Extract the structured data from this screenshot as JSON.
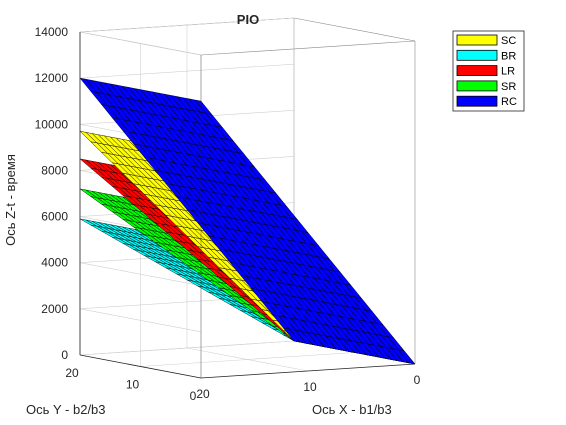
{
  "chart_data": {
    "type": "surface3d",
    "title": "PIO",
    "xlabel": "Ось X - b1/b3",
    "ylabel": "Ось Y - b2/b3",
    "zlabel": "Ось Z-t - время",
    "xlim": [
      0,
      20
    ],
    "ylim": [
      0,
      20
    ],
    "zlim": [
      0,
      14000
    ],
    "x_ticks": [
      "20",
      "10",
      "0"
    ],
    "y_ticks": [
      "20",
      "10",
      "0"
    ],
    "z_ticks": [
      "0",
      "2000",
      "4000",
      "6000",
      "8000",
      "10000",
      "12000",
      "14000"
    ],
    "grid": true,
    "legend_position": "outside-top-right",
    "series": [
      {
        "name": "SC",
        "color": "#ffff00",
        "corners": {
          "x0y0": 0,
          "x20y0": 9700,
          "x0y20": 0,
          "x20y20": 9700
        }
      },
      {
        "name": "BR",
        "color": "#00ffff",
        "corners": {
          "x0y0": 0,
          "x20y0": 5900,
          "x0y20": 0,
          "x20y20": 5900
        }
      },
      {
        "name": "LR",
        "color": "#ff0000",
        "corners": {
          "x0y0": 0,
          "x20y0": 8500,
          "x0y20": 0,
          "x20y20": 8500
        }
      },
      {
        "name": "SR",
        "color": "#00ff00",
        "corners": {
          "x0y0": 0,
          "x20y0": 7200,
          "x0y20": 0,
          "x20y20": 7200
        }
      },
      {
        "name": "RC",
        "color": "#0000ff",
        "corners": {
          "x0y0": 0,
          "x20y0": 12000,
          "x0y20": 0,
          "x20y20": 12000
        }
      }
    ]
  }
}
